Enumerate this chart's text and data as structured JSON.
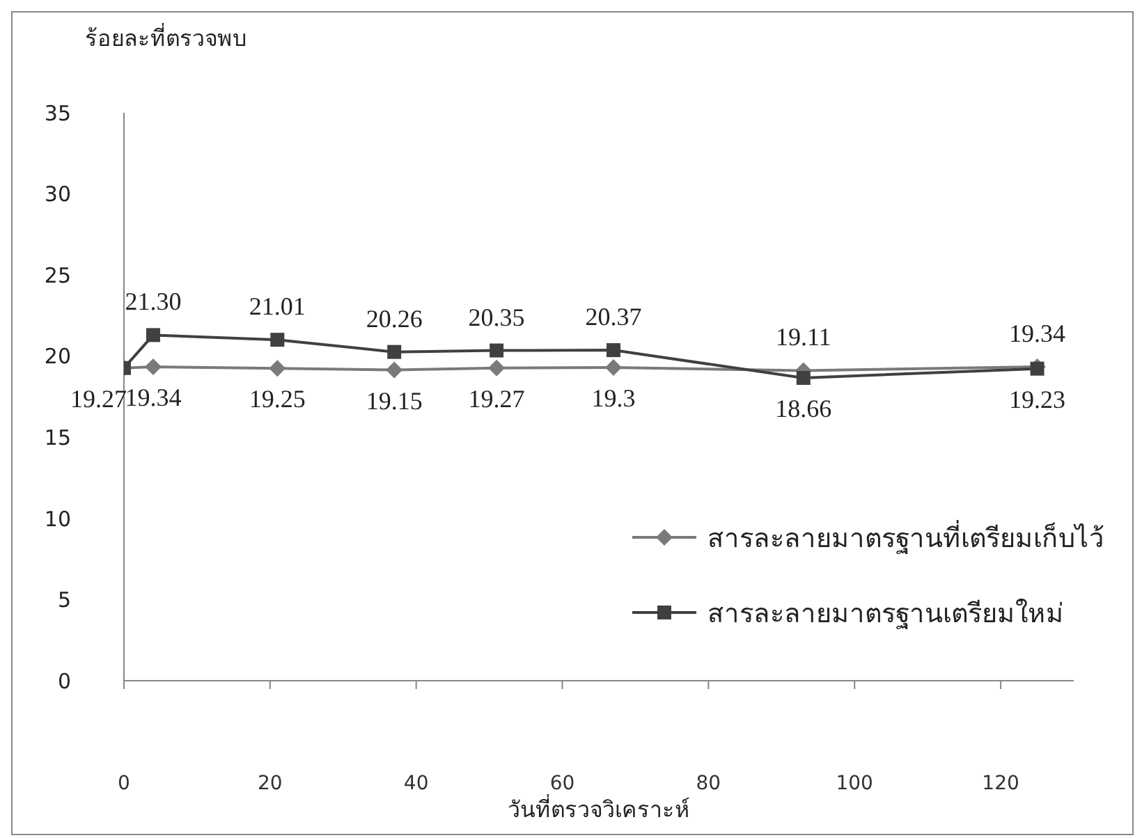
{
  "chart_data": {
    "type": "line",
    "ylabel": "ร้อยละที่ตรวจพบ",
    "xlabel": "วันที่ตรวจวิเคราะห์",
    "x": [
      0,
      4,
      21,
      37,
      51,
      67,
      93,
      125
    ],
    "xlim": [
      0,
      130
    ],
    "xticks": [
      0,
      20,
      40,
      60,
      80,
      100,
      120
    ],
    "ylim": [
      0,
      35
    ],
    "yticks": [
      0,
      5,
      10,
      15,
      20,
      25,
      30,
      35
    ],
    "grid": false,
    "legend": "right",
    "series": [
      {
        "name": "สารละลายมาตรฐานที่เตรียมเก็บไว้",
        "color": "#7a7a7a",
        "marker": "diamond",
        "values": [
          19.27,
          19.34,
          19.25,
          19.15,
          19.27,
          19.3,
          19.11,
          19.34
        ],
        "value_labels": [
          "19.27",
          "19.34",
          "19.25",
          "19.15",
          "19.27",
          "19.3",
          "19.11",
          "19.34"
        ]
      },
      {
        "name": "สารละลายมาตรฐานเตรียมใหม่",
        "color": "#404040",
        "marker": "square",
        "values": [
          19.27,
          21.3,
          21.01,
          20.26,
          20.35,
          20.37,
          18.66,
          19.23
        ],
        "value_labels": [
          null,
          "21.30",
          "21.01",
          "20.26",
          "20.35",
          "20.37",
          "18.66",
          "19.23"
        ]
      }
    ]
  }
}
